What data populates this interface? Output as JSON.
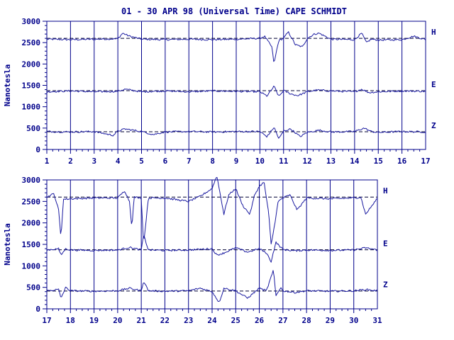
{
  "title": "01 - 30 APR 98 (Universal Time) CAPE SCHMIDT",
  "colors": {
    "ink": "#00008b",
    "trace": "#1a1aa0",
    "background": "#ffffff"
  },
  "chart_data": [
    {
      "type": "line",
      "title": "01 - 30 APR 98 (Universal Time) CAPE SCHMIDT",
      "ylabel": "Nanotesla",
      "xlabel": "",
      "xlim": [
        1,
        17
      ],
      "ylim": [
        0,
        3000
      ],
      "x_ticks": [
        1,
        2,
        3,
        4,
        5,
        6,
        7,
        8,
        9,
        10,
        11,
        12,
        13,
        14,
        15,
        16,
        17
      ],
      "y_ticks": [
        0,
        500,
        1000,
        1500,
        2000,
        2500,
        3000
      ],
      "grid": "vertical lines at each day",
      "baselines": [
        {
          "name": "H",
          "value": 2600
        },
        {
          "name": "E",
          "value": 1375
        },
        {
          "name": "Z",
          "value": 415
        }
      ],
      "series": [
        {
          "name": "H",
          "x": [
            1,
            2,
            3,
            4,
            4.2,
            4.5,
            5,
            6,
            7,
            8,
            9,
            10,
            10.2,
            10.5,
            10.6,
            10.7,
            10.8,
            11,
            11.2,
            11.5,
            11.8,
            12,
            12.3,
            12.5,
            13,
            14,
            14.3,
            14.5,
            14.7,
            15,
            16,
            16.5,
            17
          ],
          "y": [
            2580,
            2570,
            2580,
            2590,
            2720,
            2650,
            2580,
            2570,
            2580,
            2570,
            2580,
            2600,
            2650,
            2400,
            2000,
            2300,
            2550,
            2600,
            2750,
            2450,
            2400,
            2600,
            2700,
            2720,
            2580,
            2570,
            2720,
            2500,
            2580,
            2560,
            2570,
            2650,
            2570
          ]
        },
        {
          "name": "E",
          "x": [
            1,
            2,
            3,
            4,
            4.3,
            5,
            6,
            7,
            8,
            9,
            10,
            10.3,
            10.6,
            10.8,
            11,
            11.3,
            11.6,
            12,
            12.4,
            13,
            14,
            14.3,
            14.6,
            15,
            16,
            17
          ],
          "y": [
            1350,
            1370,
            1350,
            1360,
            1410,
            1350,
            1370,
            1350,
            1370,
            1360,
            1350,
            1250,
            1480,
            1240,
            1380,
            1300,
            1260,
            1350,
            1390,
            1370,
            1350,
            1410,
            1330,
            1350,
            1370,
            1360
          ]
        },
        {
          "name": "Z",
          "x": [
            1,
            2,
            3,
            3.8,
            4,
            4.3,
            5,
            5.5,
            6,
            7,
            8,
            9,
            10,
            10.3,
            10.6,
            10.8,
            11,
            11.3,
            11.7,
            12,
            12.5,
            13,
            14,
            14.4,
            14.7,
            15,
            16,
            17
          ],
          "y": [
            420,
            410,
            420,
            330,
            430,
            480,
            420,
            350,
            410,
            420,
            410,
            420,
            420,
            300,
            520,
            250,
            430,
            480,
            300,
            400,
            450,
            410,
            420,
            500,
            420,
            400,
            420,
            410
          ]
        }
      ]
    },
    {
      "type": "line",
      "title": "",
      "ylabel": "Nanotesla",
      "xlabel": "",
      "xlim": [
        17,
        31
      ],
      "ylim": [
        0,
        3000
      ],
      "x_ticks": [
        17,
        18,
        19,
        20,
        21,
        22,
        23,
        24,
        25,
        26,
        27,
        28,
        29,
        30,
        31
      ],
      "y_ticks": [
        0,
        500,
        1000,
        1500,
        2000,
        2500,
        3000
      ],
      "grid": "vertical lines at each day",
      "baselines": [
        {
          "name": "H",
          "value": 2600
        },
        {
          "name": "E",
          "value": 1375
        },
        {
          "name": "Z",
          "value": 415
        }
      ],
      "series": [
        {
          "name": "H",
          "x": [
            17,
            17.3,
            17.5,
            17.6,
            17.7,
            18,
            19,
            20,
            20.3,
            20.5,
            20.6,
            20.7,
            21,
            21.1,
            21.3,
            22,
            23,
            23.5,
            24,
            24.2,
            24.3,
            24.5,
            24.7,
            25,
            25.3,
            25.6,
            25.8,
            26,
            26.2,
            26.4,
            26.5,
            26.6,
            26.8,
            27,
            27.3,
            27.6,
            28,
            29,
            30,
            30.3,
            30.5,
            31
          ],
          "y": [
            2600,
            2680,
            2300,
            1650,
            2550,
            2560,
            2580,
            2580,
            2750,
            2500,
            1900,
            2600,
            2580,
            1500,
            2580,
            2580,
            2500,
            2620,
            2800,
            3100,
            2800,
            2200,
            2650,
            2800,
            2400,
            2200,
            2650,
            2850,
            2950,
            2200,
            1500,
            1800,
            2500,
            2580,
            2650,
            2300,
            2580,
            2560,
            2580,
            2600,
            2200,
            2570
          ]
        },
        {
          "name": "E",
          "x": [
            17,
            17.5,
            17.6,
            17.8,
            18,
            19,
            20,
            20.5,
            21,
            21.1,
            21.3,
            22,
            23,
            24,
            24.2,
            24.5,
            25,
            25.5,
            26,
            26.3,
            26.5,
            26.7,
            27,
            27.5,
            28,
            29,
            30,
            30.5,
            31
          ],
          "y": [
            1370,
            1400,
            1250,
            1400,
            1370,
            1360,
            1370,
            1430,
            1370,
            1720,
            1370,
            1360,
            1370,
            1400,
            1250,
            1300,
            1420,
            1320,
            1400,
            1300,
            1100,
            1550,
            1380,
            1350,
            1370,
            1360,
            1370,
            1420,
            1370
          ]
        },
        {
          "name": "Z",
          "x": [
            17,
            17.5,
            17.6,
            17.8,
            18,
            19,
            20,
            20.5,
            21,
            21.1,
            21.3,
            22,
            23,
            23.5,
            24,
            24.3,
            24.5,
            25,
            25.5,
            26,
            26.3,
            26.6,
            26.7,
            26.9,
            27,
            27.5,
            28,
            29,
            30,
            30.5,
            31
          ],
          "y": [
            420,
            450,
            250,
            500,
            420,
            410,
            420,
            480,
            420,
            650,
            420,
            410,
            420,
            480,
            400,
            150,
            480,
            420,
            250,
            480,
            420,
            900,
            300,
            500,
            420,
            380,
            420,
            410,
            420,
            450,
            420
          ]
        }
      ]
    }
  ]
}
